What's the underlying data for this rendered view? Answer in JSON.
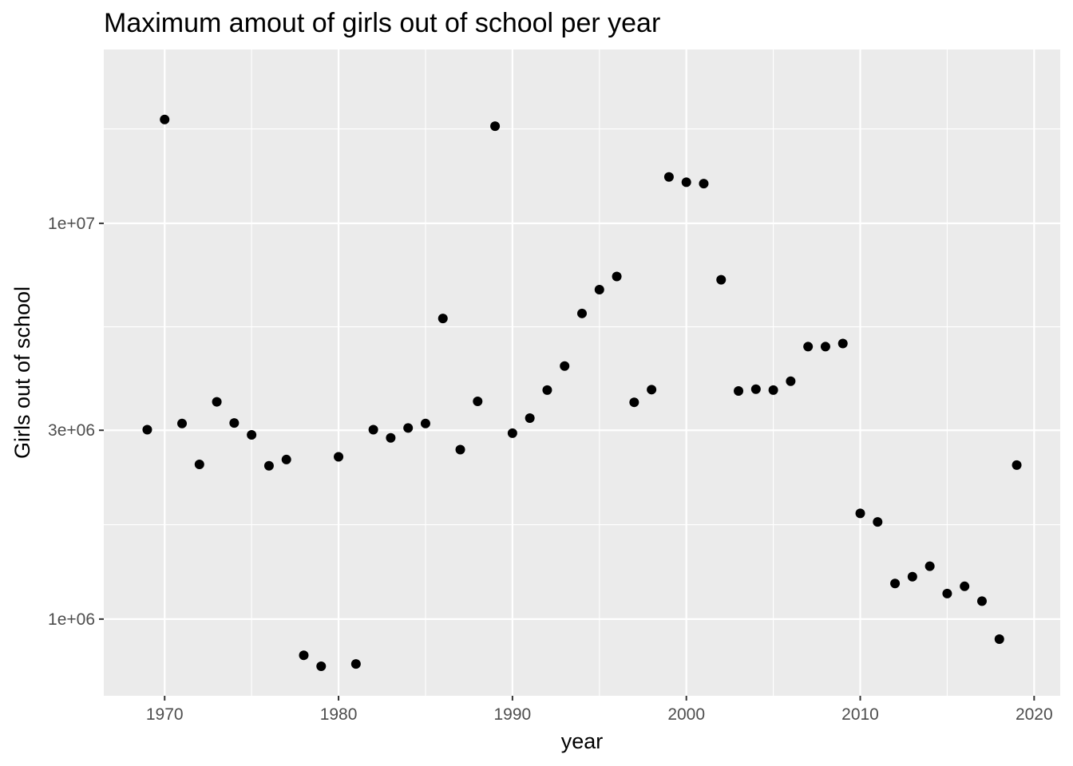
{
  "chart_data": {
    "type": "scatter",
    "title": "Maximum amout of girls out of school per year",
    "xlabel": "year",
    "ylabel": "Girls out of school",
    "x_scale": "linear",
    "y_scale": "log10",
    "xlim": [
      1966.5,
      2021.5
    ],
    "ylim": [
      640000,
      27500000
    ],
    "x_ticks": [
      1970,
      1980,
      1990,
      2000,
      2010,
      2020
    ],
    "x_tick_labels": [
      "1970",
      "1980",
      "1990",
      "2000",
      "2010",
      "2020"
    ],
    "x_minor_ticks": [
      1975,
      1985,
      1995,
      2005,
      2015
    ],
    "y_ticks": [
      1000000,
      3000000,
      10000000
    ],
    "y_tick_labels": [
      "1e+06",
      "3e+06",
      "1e+07"
    ],
    "y_minor_ticks": [
      1732051,
      5477226,
      17320508
    ],
    "grid": true,
    "colors": {
      "panel": "#ebebeb",
      "grid": "#ffffff",
      "point": "#000000"
    },
    "x": [
      1969,
      1970,
      1971,
      1972,
      1973,
      1974,
      1975,
      1976,
      1977,
      1978,
      1979,
      1980,
      1981,
      1982,
      1983,
      1984,
      1985,
      1986,
      1987,
      1988,
      1989,
      1990,
      1991,
      1992,
      1993,
      1994,
      1995,
      1996,
      1997,
      1998,
      1999,
      2000,
      2001,
      2002,
      2003,
      2004,
      2005,
      2006,
      2007,
      2008,
      2009,
      2010,
      2011,
      2012,
      2013,
      2014,
      2015,
      2016,
      2017,
      2018,
      2019
    ],
    "y": [
      3010000,
      18300000,
      3120000,
      2460000,
      3540000,
      3130000,
      2920000,
      2440000,
      2530000,
      810000,
      760000,
      2570000,
      770000,
      3010000,
      2870000,
      3040000,
      3120000,
      5750000,
      2680000,
      3550000,
      17600000,
      2950000,
      3220000,
      3790000,
      4360000,
      5920000,
      6800000,
      7340000,
      3530000,
      3800000,
      13100000,
      12700000,
      12600000,
      7200000,
      3770000,
      3810000,
      3790000,
      3990000,
      4880000,
      4880000,
      4970000,
      1850000,
      1760000,
      1230000,
      1280000,
      1360000,
      1160000,
      1210000,
      1110000,
      890000,
      2450000
    ]
  }
}
